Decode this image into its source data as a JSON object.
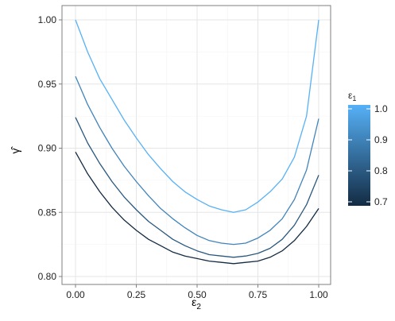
{
  "chart_data": {
    "type": "line",
    "xlabel": "ε",
    "xlabel_sub": "2",
    "ylabel": "γ̂",
    "xlim": [
      0.0,
      1.0
    ],
    "ylim": [
      0.8,
      1.0
    ],
    "x_ticks": [
      0.0,
      0.25,
      0.5,
      0.75,
      1.0
    ],
    "x_tick_labels": [
      "0.00",
      "0.25",
      "0.50",
      "0.75",
      "1.00"
    ],
    "y_ticks": [
      0.8,
      0.85,
      0.9,
      0.95,
      1.0
    ],
    "y_tick_labels": [
      "0.80",
      "0.85",
      "0.90",
      "0.95",
      "1.00"
    ],
    "grid": true,
    "legend": {
      "title": "ε",
      "title_sub": "1",
      "position": "right",
      "type": "colorbar",
      "range": [
        0.7,
        1.0
      ],
      "breaks": [
        1.0,
        0.9,
        0.8,
        0.7
      ],
      "break_labels": [
        "1.0",
        "0.9",
        "0.8",
        "0.7"
      ],
      "low_color": "#132b43",
      "high_color": "#56b1f7"
    },
    "x": [
      0.0,
      0.05,
      0.1,
      0.15,
      0.2,
      0.25,
      0.3,
      0.35,
      0.4,
      0.45,
      0.5,
      0.55,
      0.6,
      0.65,
      0.7,
      0.75,
      0.8,
      0.85,
      0.9,
      0.95,
      1.0
    ],
    "series": [
      {
        "eps1": 1.0,
        "values": [
          1.0,
          0.975,
          0.954,
          0.938,
          0.922,
          0.908,
          0.895,
          0.884,
          0.874,
          0.866,
          0.86,
          0.855,
          0.852,
          0.85,
          0.852,
          0.858,
          0.866,
          0.876,
          0.893,
          0.925,
          1.0
        ]
      },
      {
        "eps1": 0.9,
        "values": [
          0.956,
          0.934,
          0.916,
          0.9,
          0.886,
          0.874,
          0.863,
          0.853,
          0.845,
          0.838,
          0.832,
          0.828,
          0.826,
          0.825,
          0.826,
          0.83,
          0.836,
          0.845,
          0.86,
          0.883,
          0.923
        ]
      },
      {
        "eps1": 0.8,
        "values": [
          0.924,
          0.904,
          0.888,
          0.874,
          0.862,
          0.852,
          0.843,
          0.836,
          0.829,
          0.824,
          0.82,
          0.817,
          0.816,
          0.815,
          0.816,
          0.818,
          0.822,
          0.829,
          0.84,
          0.856,
          0.879
        ]
      },
      {
        "eps1": 0.7,
        "values": [
          0.897,
          0.88,
          0.866,
          0.854,
          0.844,
          0.836,
          0.829,
          0.824,
          0.819,
          0.816,
          0.814,
          0.812,
          0.811,
          0.81,
          0.811,
          0.812,
          0.815,
          0.82,
          0.828,
          0.839,
          0.853
        ]
      }
    ]
  }
}
